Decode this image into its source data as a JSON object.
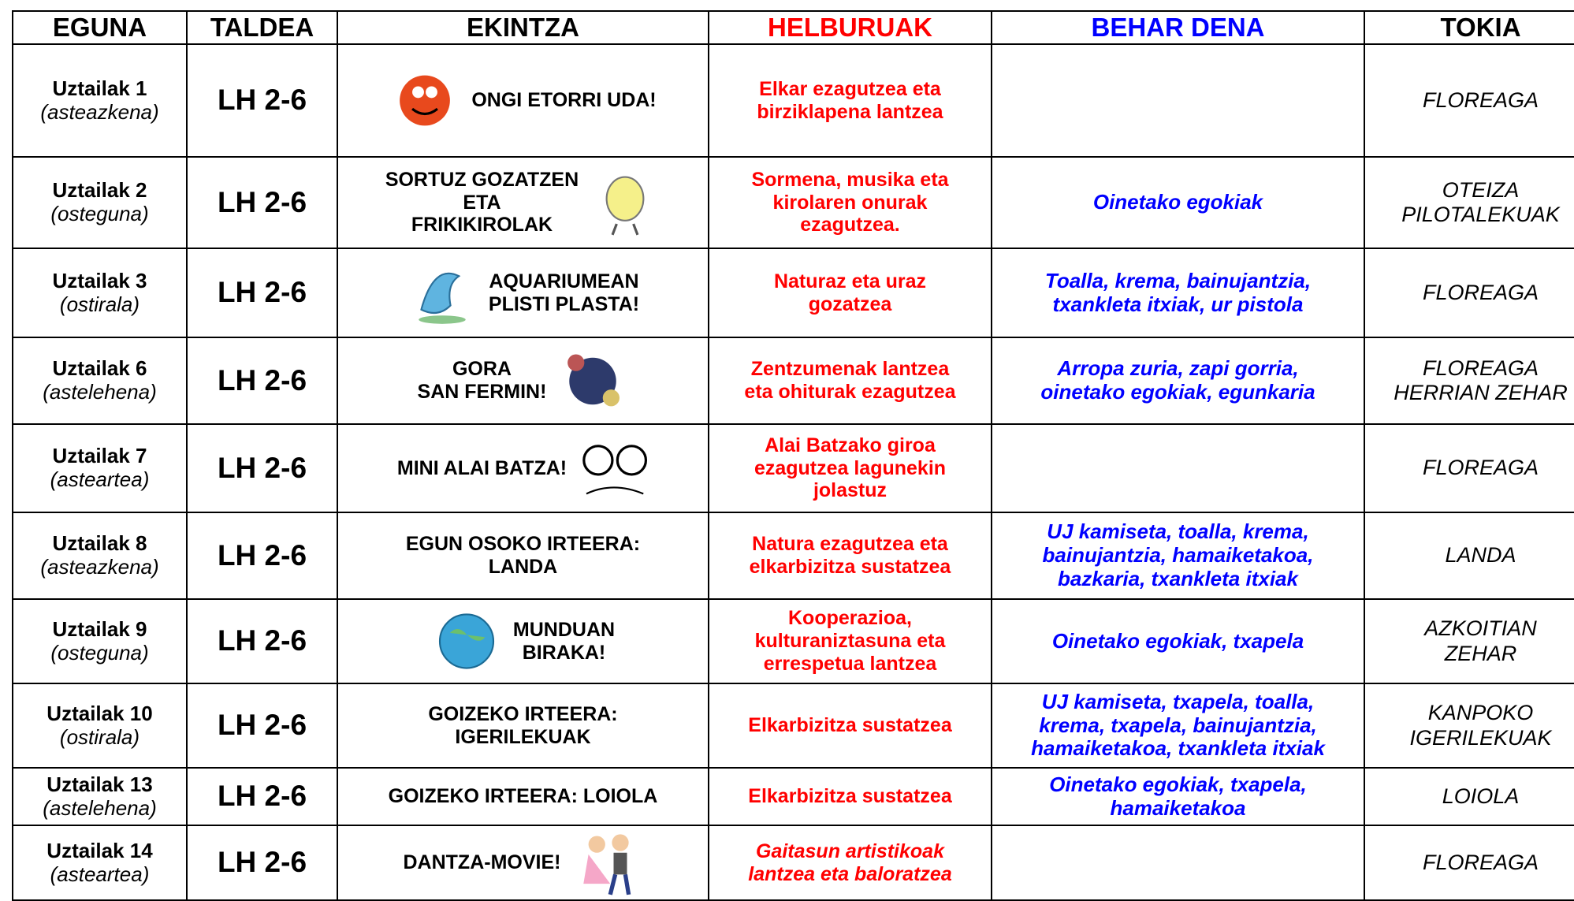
{
  "table": {
    "headers": [
      "EGUNA",
      "TALDEA",
      "EKINTZA",
      "HELBURUAK",
      "BEHAR DENA",
      "TOKIA"
    ],
    "rows": [
      {
        "day": "Uztailak 1",
        "weekday": "(asteazkena)",
        "group": "LH 2-6",
        "activity": "ONGI ETORRI UDA!",
        "goal": "Elkar ezagutzea eta\nbirziklapena lantzea",
        "needs": "",
        "place": "FLOREAGA"
      },
      {
        "day": "Uztailak 2",
        "weekday": "(osteguna)",
        "group": "LH 2-6",
        "activity": "SORTUZ GOZATZEN\nETA\nFRIKIKIROLAK",
        "goal": "Sormena, musika eta\nkirolaren onurak\nezagutzea.",
        "needs": "Oinetako egokiak",
        "place": "OTEIZA\nPILOTALEKUAK"
      },
      {
        "day": "Uztailak 3",
        "weekday": "(ostirala)",
        "group": "LH 2-6",
        "activity": "AQUARIUMEAN\nPLISTI PLASTA!",
        "goal": "Naturaz eta uraz\ngozatzea",
        "needs": "Toalla, krema, bainujantzia,\ntxankleta itxiak, ur pistola",
        "place": "FLOREAGA"
      },
      {
        "day": "Uztailak 6",
        "weekday": "(astelehena)",
        "group": "LH 2-6",
        "activity": "GORA\nSAN FERMIN!",
        "goal": "Zentzumenak lantzea\neta ohiturak ezagutzea",
        "needs": "Arropa zuria, zapi gorria,\noinetako egokiak, egunkaria",
        "place": "FLOREAGA\nHERRIAN ZEHAR"
      },
      {
        "day": "Uztailak 7",
        "weekday": "(asteartea)",
        "group": "LH 2-6",
        "activity": "MINI ALAI BATZA!",
        "goal": "Alai Batzako giroa\nezagutzea lagunekin\njolastuz",
        "needs": "",
        "place": "FLOREAGA"
      },
      {
        "day": "Uztailak 8",
        "weekday": "(asteazkena)",
        "group": "LH 2-6",
        "activity": "EGUN OSOKO IRTEERA:\nLANDA",
        "goal": "Natura ezagutzea eta\nelkarbizitza sustatzea",
        "needs": "UJ kamiseta, toalla, krema,\nbainujantzia, hamaiketakoa,\nbazkaria, txankleta itxiak",
        "place": "LANDA"
      },
      {
        "day": "Uztailak 9",
        "weekday": "(osteguna)",
        "group": "LH 2-6",
        "activity": "MUNDUAN\nBIRAKA!",
        "goal": "Kooperazioa,\nkulturaniztasuna eta\nerrespetua lantzea",
        "needs": "Oinetako egokiak, txapela",
        "place": "AZKOITIAN\nZEHAR"
      },
      {
        "day": "Uztailak 10",
        "weekday": "(ostirala)",
        "group": "LH 2-6",
        "activity": "GOIZEKO IRTEERA:\nIGERILEKUAK",
        "goal": "Elkarbizitza sustatzea",
        "needs": "UJ kamiseta, txapela, toalla,\nkrema, txapela, bainujantzia,\nhamaiketakoa, txankleta itxiak",
        "place": "KANPOKO\nIGERILEKUAK"
      },
      {
        "day": "Uztailak 13",
        "weekday": "(astelehena)",
        "group": "LH 2-6",
        "activity": "GOIZEKO IRTEERA: LOIOLA",
        "goal": "Elkarbizitza sustatzea",
        "needs": "Oinetako egokiak, txapela,\nhamaiketakoa",
        "place": "LOIOLA"
      },
      {
        "day": "Uztailak 14",
        "weekday": "(asteartea)",
        "group": "LH 2-6",
        "activity": "DANTZA-MOVIE!",
        "goal": "Gaitasun artistikoak\nlantzea eta baloratzea",
        "needs": "",
        "place": "FLOREAGA"
      }
    ]
  }
}
